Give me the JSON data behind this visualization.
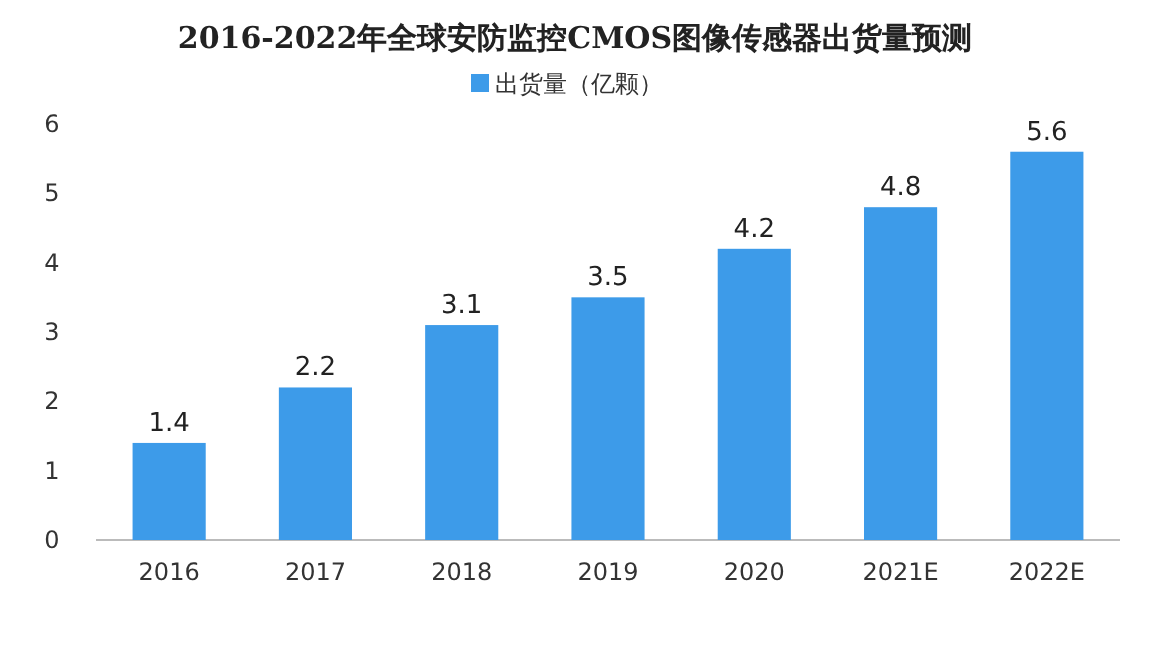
{
  "chart_data": {
    "type": "bar",
    "title": "2016-2022年全球安防监控CMOS图像传感器出货量预测",
    "categories": [
      "2016",
      "2017",
      "2018",
      "2019",
      "2020",
      "2021E",
      "2022E"
    ],
    "series": [
      {
        "name": "出货量（亿颗）",
        "color": "#3d9be9",
        "values": [
          1.4,
          2.2,
          3.1,
          3.5,
          4.2,
          4.8,
          5.6
        ]
      }
    ],
    "ylim": [
      0,
      6
    ],
    "yticks": [
      0,
      1,
      2,
      3,
      4,
      5,
      6
    ],
    "legend": "top",
    "data_labels": true
  }
}
